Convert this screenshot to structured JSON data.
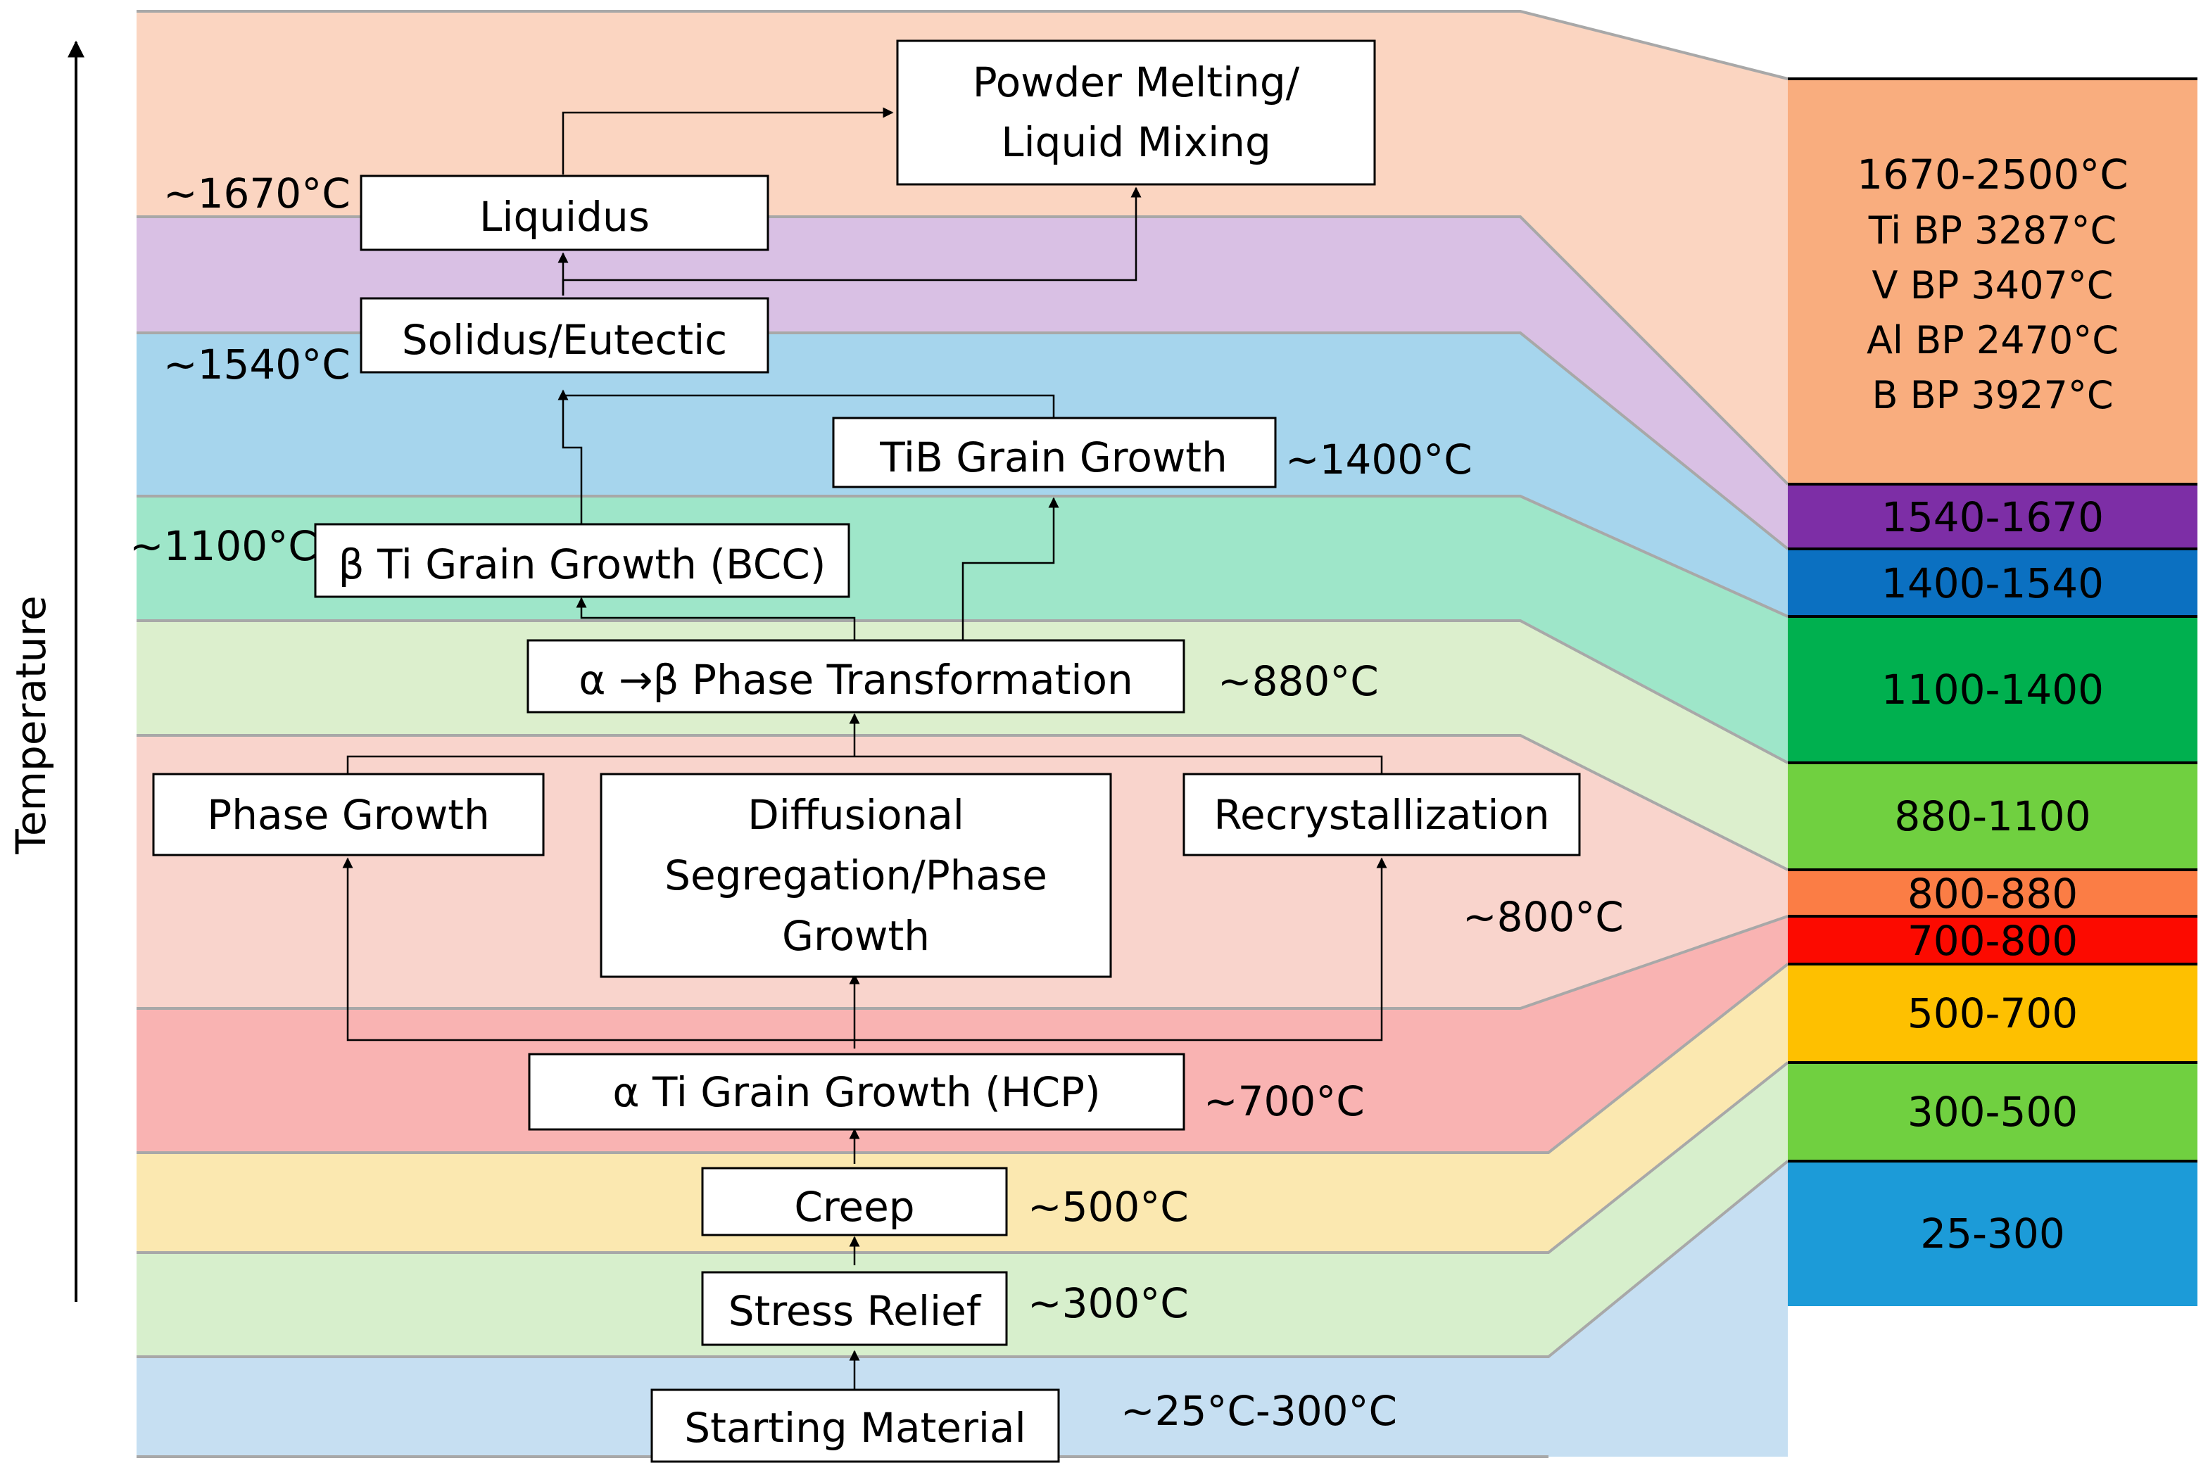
{
  "axis": {
    "label": "Temperature"
  },
  "band_colors": {
    "room": "#c6dff2",
    "stress": "#d7efcc",
    "creep": "#fbe8b0",
    "alpha": "#f9b3b2",
    "diffusion": "#f9d4cc",
    "transform": "#dcefcd",
    "beta": "#9ee6c9",
    "tib": "#a6d5ed",
    "solidus": "#d9c0e4",
    "liquid": "#fbd5c1"
  },
  "boxes": {
    "starting_material": "Starting Material",
    "stress_relief": "Stress Relief",
    "creep": "Creep",
    "alpha_grain": "α Ti Grain Growth (HCP)",
    "phase_growth": "Phase Growth",
    "diffusional": [
      "Diffusional",
      "Segregation/Phase",
      "Growth"
    ],
    "recrystallization": "Recrystallization",
    "transformation": "α →β Phase Transformation",
    "beta_grain": "β Ti Grain Growth (BCC)",
    "tib_grain": "TiB Grain Growth",
    "solidus": "Solidus/Eutectic",
    "liquidus": "Liquidus",
    "powder_melting": [
      "Powder Melting/",
      "Liquid Mixing"
    ]
  },
  "temperatures": {
    "t25": "~25°C-300°C",
    "t300": "~300°C",
    "t500": "~500°C",
    "t700": "~700°C",
    "t800": "~800°C",
    "t880": "~880°C",
    "t1100": "~1100°C",
    "t1400": "~1400°C",
    "t1540": "~1540°C",
    "t1670": "~1670°C"
  },
  "legend": {
    "top": {
      "title": "1670-2500°C",
      "lines": [
        "Ti BP 3287°C",
        "V BP 3407°C",
        "Al BP 2470°C",
        "B BP 3927°C"
      ],
      "color": "#f9ad7e"
    },
    "ranges": [
      {
        "label": "1540-1670",
        "color": "#7d2ea6"
      },
      {
        "label": "1400-1540",
        "color": "#0b70c1"
      },
      {
        "label": "1100-1400",
        "color": "#00b04f"
      },
      {
        "label": "880-1100",
        "color": "#70d040"
      },
      {
        "label": "800-880",
        "color": "#fb7d45"
      },
      {
        "label": "700-800",
        "color": "#fc0a00"
      },
      {
        "label": "500-700",
        "color": "#fec000"
      },
      {
        "label": "300-500",
        "color": "#70d040"
      },
      {
        "label": "25-300",
        "color": "#1c9bd8"
      }
    ]
  }
}
